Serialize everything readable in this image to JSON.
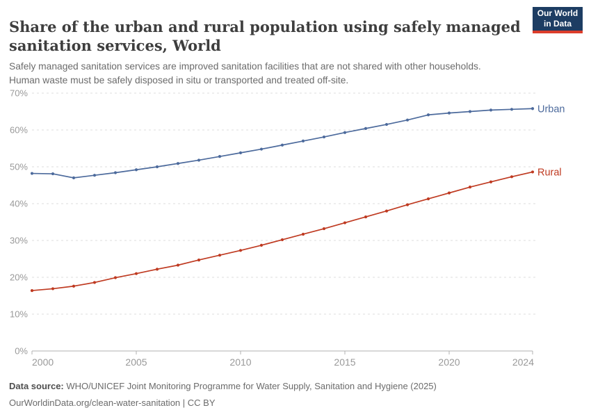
{
  "header": {
    "title": "Share of the urban and rural population using safely managed sanitation services, World",
    "subtitle_line1": "Safely managed sanitation services are improved sanitation facilities that are not shared with other households.",
    "subtitle_line2": "Human waste must be safely disposed in situ or transported and treated off-site.",
    "logo": {
      "line1": "Our World",
      "line2": "in Data",
      "bg_color": "#1d3d63",
      "underline_color": "#dc3d2b"
    }
  },
  "chart_data": {
    "type": "line",
    "title": "Share of the urban and rural population using safely managed sanitation services, World",
    "x": [
      2000,
      2001,
      2002,
      2003,
      2004,
      2005,
      2006,
      2007,
      2008,
      2009,
      2010,
      2011,
      2012,
      2013,
      2014,
      2015,
      2016,
      2017,
      2018,
      2019,
      2020,
      2021,
      2022,
      2023,
      2024
    ],
    "series": [
      {
        "name": "Urban",
        "color": "#4c6a9c",
        "values": [
          48.2,
          48.1,
          47.0,
          47.7,
          48.4,
          49.2,
          50.0,
          50.9,
          51.8,
          52.8,
          53.8,
          54.8,
          55.9,
          57.0,
          58.1,
          59.3,
          60.4,
          61.5,
          62.7,
          64.1,
          64.6,
          65.0,
          65.4,
          65.6,
          65.8
        ]
      },
      {
        "name": "Rural",
        "color": "#bf3a21",
        "values": [
          16.4,
          16.9,
          17.6,
          18.6,
          19.9,
          21.0,
          22.2,
          23.3,
          24.7,
          26.0,
          27.3,
          28.7,
          30.2,
          31.7,
          33.2,
          34.8,
          36.4,
          38.0,
          39.7,
          41.3,
          42.9,
          44.5,
          45.9,
          47.3,
          48.6
        ]
      }
    ],
    "xlim": [
      2000,
      2024
    ],
    "ylim": [
      0,
      70
    ],
    "yticks": [
      0,
      10,
      20,
      30,
      40,
      50,
      60,
      70
    ],
    "ytick_suffix": "%",
    "xticks": [
      2000,
      2005,
      2010,
      2015,
      2020,
      2024
    ],
    "grid": "horizontal-dashed",
    "legend_position": "end-of-line-labels",
    "colors": {
      "gridline": "#dcdcdc",
      "axis_line": "#b0b0b0",
      "tick_label": "#999999"
    }
  },
  "footer": {
    "datasource_label": "Data source:",
    "datasource_text": "WHO/UNICEF Joint Monitoring Programme for Water Supply, Sanitation and Hygiene (2025)",
    "permalink": "OurWorldinData.org/clean-water-sanitation",
    "separator": " | ",
    "license": "CC BY"
  }
}
